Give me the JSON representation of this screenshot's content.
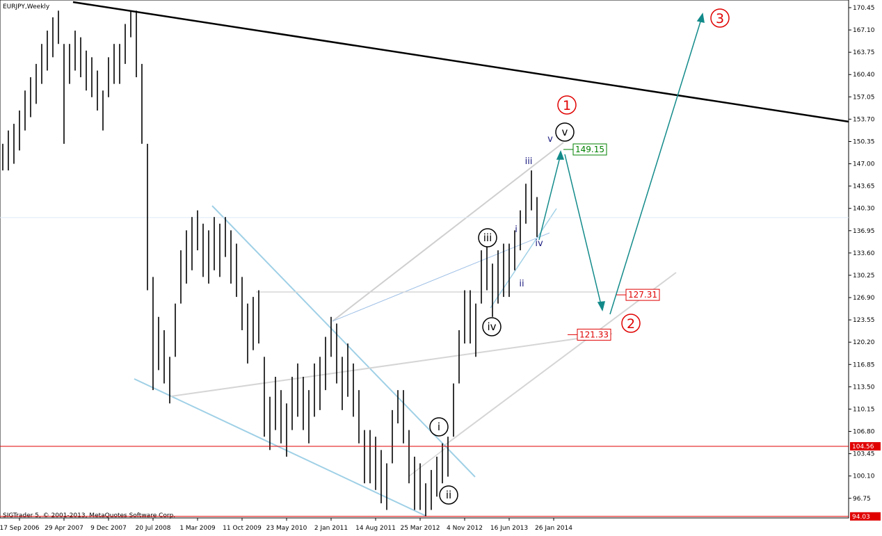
{
  "chart_data": {
    "type": "hlbar",
    "title": "EURJPY,Weekly",
    "footer": "SIGTrader 5, © 2001-2013, MetaQuotes Software Corp.",
    "series": [
      {
        "name": "EURJPY",
        "color": "#000000",
        "high": [
          150,
          152,
          153,
          155,
          158,
          160,
          162,
          165,
          167,
          169,
          170,
          165,
          165,
          167,
          166,
          164,
          163,
          161,
          158,
          163,
          165,
          165,
          168,
          170,
          170,
          162,
          150,
          130,
          124,
          122,
          118,
          126,
          134,
          137,
          139,
          140,
          138,
          137,
          139,
          138,
          139,
          137,
          135,
          130,
          126,
          127,
          128,
          118,
          112,
          115,
          113,
          111,
          115,
          117,
          115,
          113,
          117,
          118,
          121,
          124,
          123,
          118,
          120,
          117,
          113,
          107,
          107,
          106,
          104,
          102,
          110,
          113,
          113,
          107,
          103,
          102,
          99,
          101,
          103,
          105,
          106,
          114,
          122,
          128,
          128,
          126,
          134,
          136,
          132,
          134,
          135,
          135,
          137,
          140,
          144,
          146,
          142
        ],
        "low": [
          146,
          146,
          147,
          149,
          152,
          154,
          156,
          159,
          161,
          163,
          165,
          150,
          159,
          161,
          160,
          158,
          157,
          155,
          152,
          157,
          159,
          159,
          162,
          166,
          160,
          150,
          128,
          113,
          116,
          114,
          111,
          118,
          126,
          129,
          131,
          134,
          130,
          129,
          131,
          130,
          133,
          129,
          127,
          122,
          117,
          119,
          120,
          106,
          104,
          107,
          105,
          103,
          107,
          109,
          107,
          105,
          109,
          110,
          113,
          118,
          114,
          110,
          112,
          109,
          105,
          99,
          99,
          98,
          96,
          95,
          102,
          108,
          105,
          99,
          95,
          95,
          94,
          95,
          97,
          99,
          100,
          106,
          114,
          120,
          120,
          118,
          126,
          128,
          124,
          126,
          127,
          127,
          131,
          134,
          138,
          140,
          136
        ]
      }
    ],
    "xlim": [
      -0.5,
      152
    ],
    "xticks": [
      {
        "value": 3,
        "label": "17 Sep 2006"
      },
      {
        "value": 11,
        "label": "29 Apr 2007"
      },
      {
        "value": 19,
        "label": "9 Dec 2007"
      },
      {
        "value": 27,
        "label": "20 Jul 2008"
      },
      {
        "value": 35,
        "label": "1 Mar 2009"
      },
      {
        "value": 43,
        "label": "11 Oct 2009"
      },
      {
        "value": 51,
        "label": "23 May 2010"
      },
      {
        "value": 59,
        "label": "2 Jan 2011"
      },
      {
        "value": 67,
        "label": "14 Aug 2011"
      },
      {
        "value": 75,
        "label": "25 Mar 2012"
      },
      {
        "value": 83,
        "label": "4 Nov 2012"
      },
      {
        "value": 91,
        "label": "16 Jun 2013"
      },
      {
        "value": 99,
        "label": "26 Jan 2014"
      }
    ],
    "ylim": [
      93.8,
      171.6
    ],
    "yticks": [
      170.45,
      {
        "value": 167.1,
        "label": "167.10"
      },
      163.75,
      {
        "value": 160.4,
        "label": "160.40"
      },
      157.05,
      {
        "value": 153.7,
        "label": "153.70"
      },
      150.35,
      {
        "value": 147,
        "label": "147.00"
      },
      143.65,
      {
        "value": 140.3,
        "label": "140.30"
      },
      136.95,
      {
        "value": 133.6,
        "label": "133.60"
      },
      130.25,
      {
        "value": 126.9,
        "label": "126.90"
      },
      123.55,
      {
        "value": 120.2,
        "label": "120.20"
      },
      116.85,
      {
        "value": 113.5,
        "label": "113.50"
      },
      110.15,
      {
        "value": 106.8,
        "label": "106.80"
      },
      103.45,
      {
        "value": 100.1,
        "label": "100.10"
      },
      96.75
    ],
    "levels": [
      104.56,
      94.03
    ],
    "level_color": "#e00000",
    "price_boxes": [
      {
        "value": 149.15,
        "color": "#008000"
      },
      {
        "value": 127.31,
        "color": "#e00000"
      },
      {
        "value": 121.33,
        "color": "#e00000"
      }
    ],
    "waves_major": [
      "i",
      "ii",
      "iii",
      "iv",
      "v"
    ],
    "waves_degree": [
      "1",
      "2",
      "3"
    ],
    "waves_minor": [
      "v",
      "iii",
      "i",
      "iv",
      "ii"
    ]
  }
}
